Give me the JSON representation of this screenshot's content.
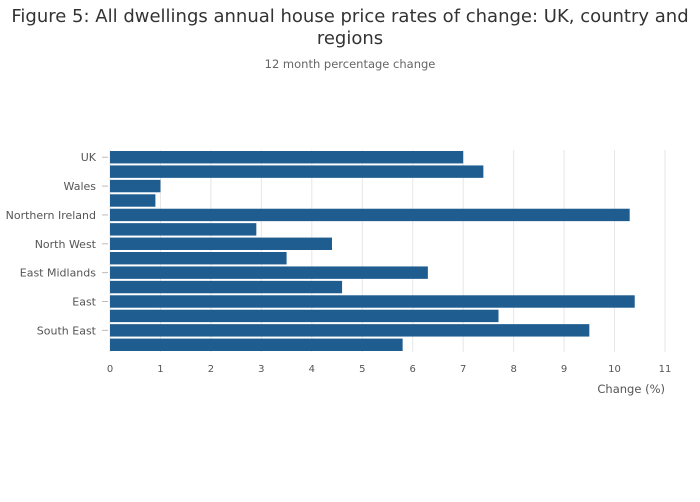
{
  "chart_data": {
    "type": "bar",
    "orientation": "horizontal",
    "title": "Figure 5: All dwellings annual house price rates of change: UK, country and regions",
    "subtitle": "12 month percentage change",
    "xlabel": "Change (%)",
    "ylabel": "",
    "xlim": [
      0,
      11
    ],
    "xticks": [
      0,
      1,
      2,
      3,
      4,
      5,
      6,
      7,
      8,
      9,
      10,
      11
    ],
    "grid": true,
    "legend": "none",
    "bar_color": "#1f5c8f",
    "categories": [
      "UK",
      "",
      "Wales",
      "",
      "Northern Ireland",
      "",
      "North West",
      "",
      "East Midlands",
      "",
      "East",
      "",
      "South East",
      ""
    ],
    "values": [
      7.0,
      7.4,
      1.0,
      0.9,
      10.3,
      2.9,
      4.4,
      3.5,
      6.3,
      4.6,
      10.4,
      7.7,
      9.5,
      5.8
    ]
  }
}
